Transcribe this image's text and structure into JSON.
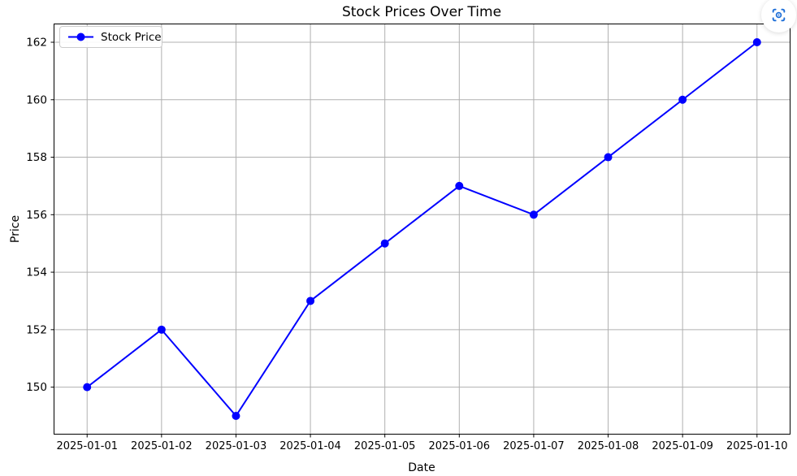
{
  "chart_data": {
    "type": "line",
    "title": "Stock Prices Over Time",
    "xlabel": "Date",
    "ylabel": "Price",
    "x": [
      "2025-01-01",
      "2025-01-02",
      "2025-01-03",
      "2025-01-04",
      "2025-01-05",
      "2025-01-06",
      "2025-01-07",
      "2025-01-08",
      "2025-01-09",
      "2025-01-10"
    ],
    "series": [
      {
        "name": "Stock Price",
        "values": [
          150,
          152,
          149,
          153,
          155,
          157,
          156,
          158,
          160,
          162
        ],
        "color": "#0000ff",
        "marker": "circle"
      }
    ],
    "yticks": [
      150,
      152,
      154,
      156,
      158,
      160,
      162
    ],
    "ylim": [
      148.35,
      162.65
    ],
    "grid": true,
    "grid_color": "#b0b0b0",
    "spine_color": "#000000",
    "legend_position": "upper left"
  },
  "icons": {
    "capture": "screen-capture-icon"
  },
  "colors": {
    "capture_icon": "#1d6ed8",
    "background": "#ffffff"
  }
}
